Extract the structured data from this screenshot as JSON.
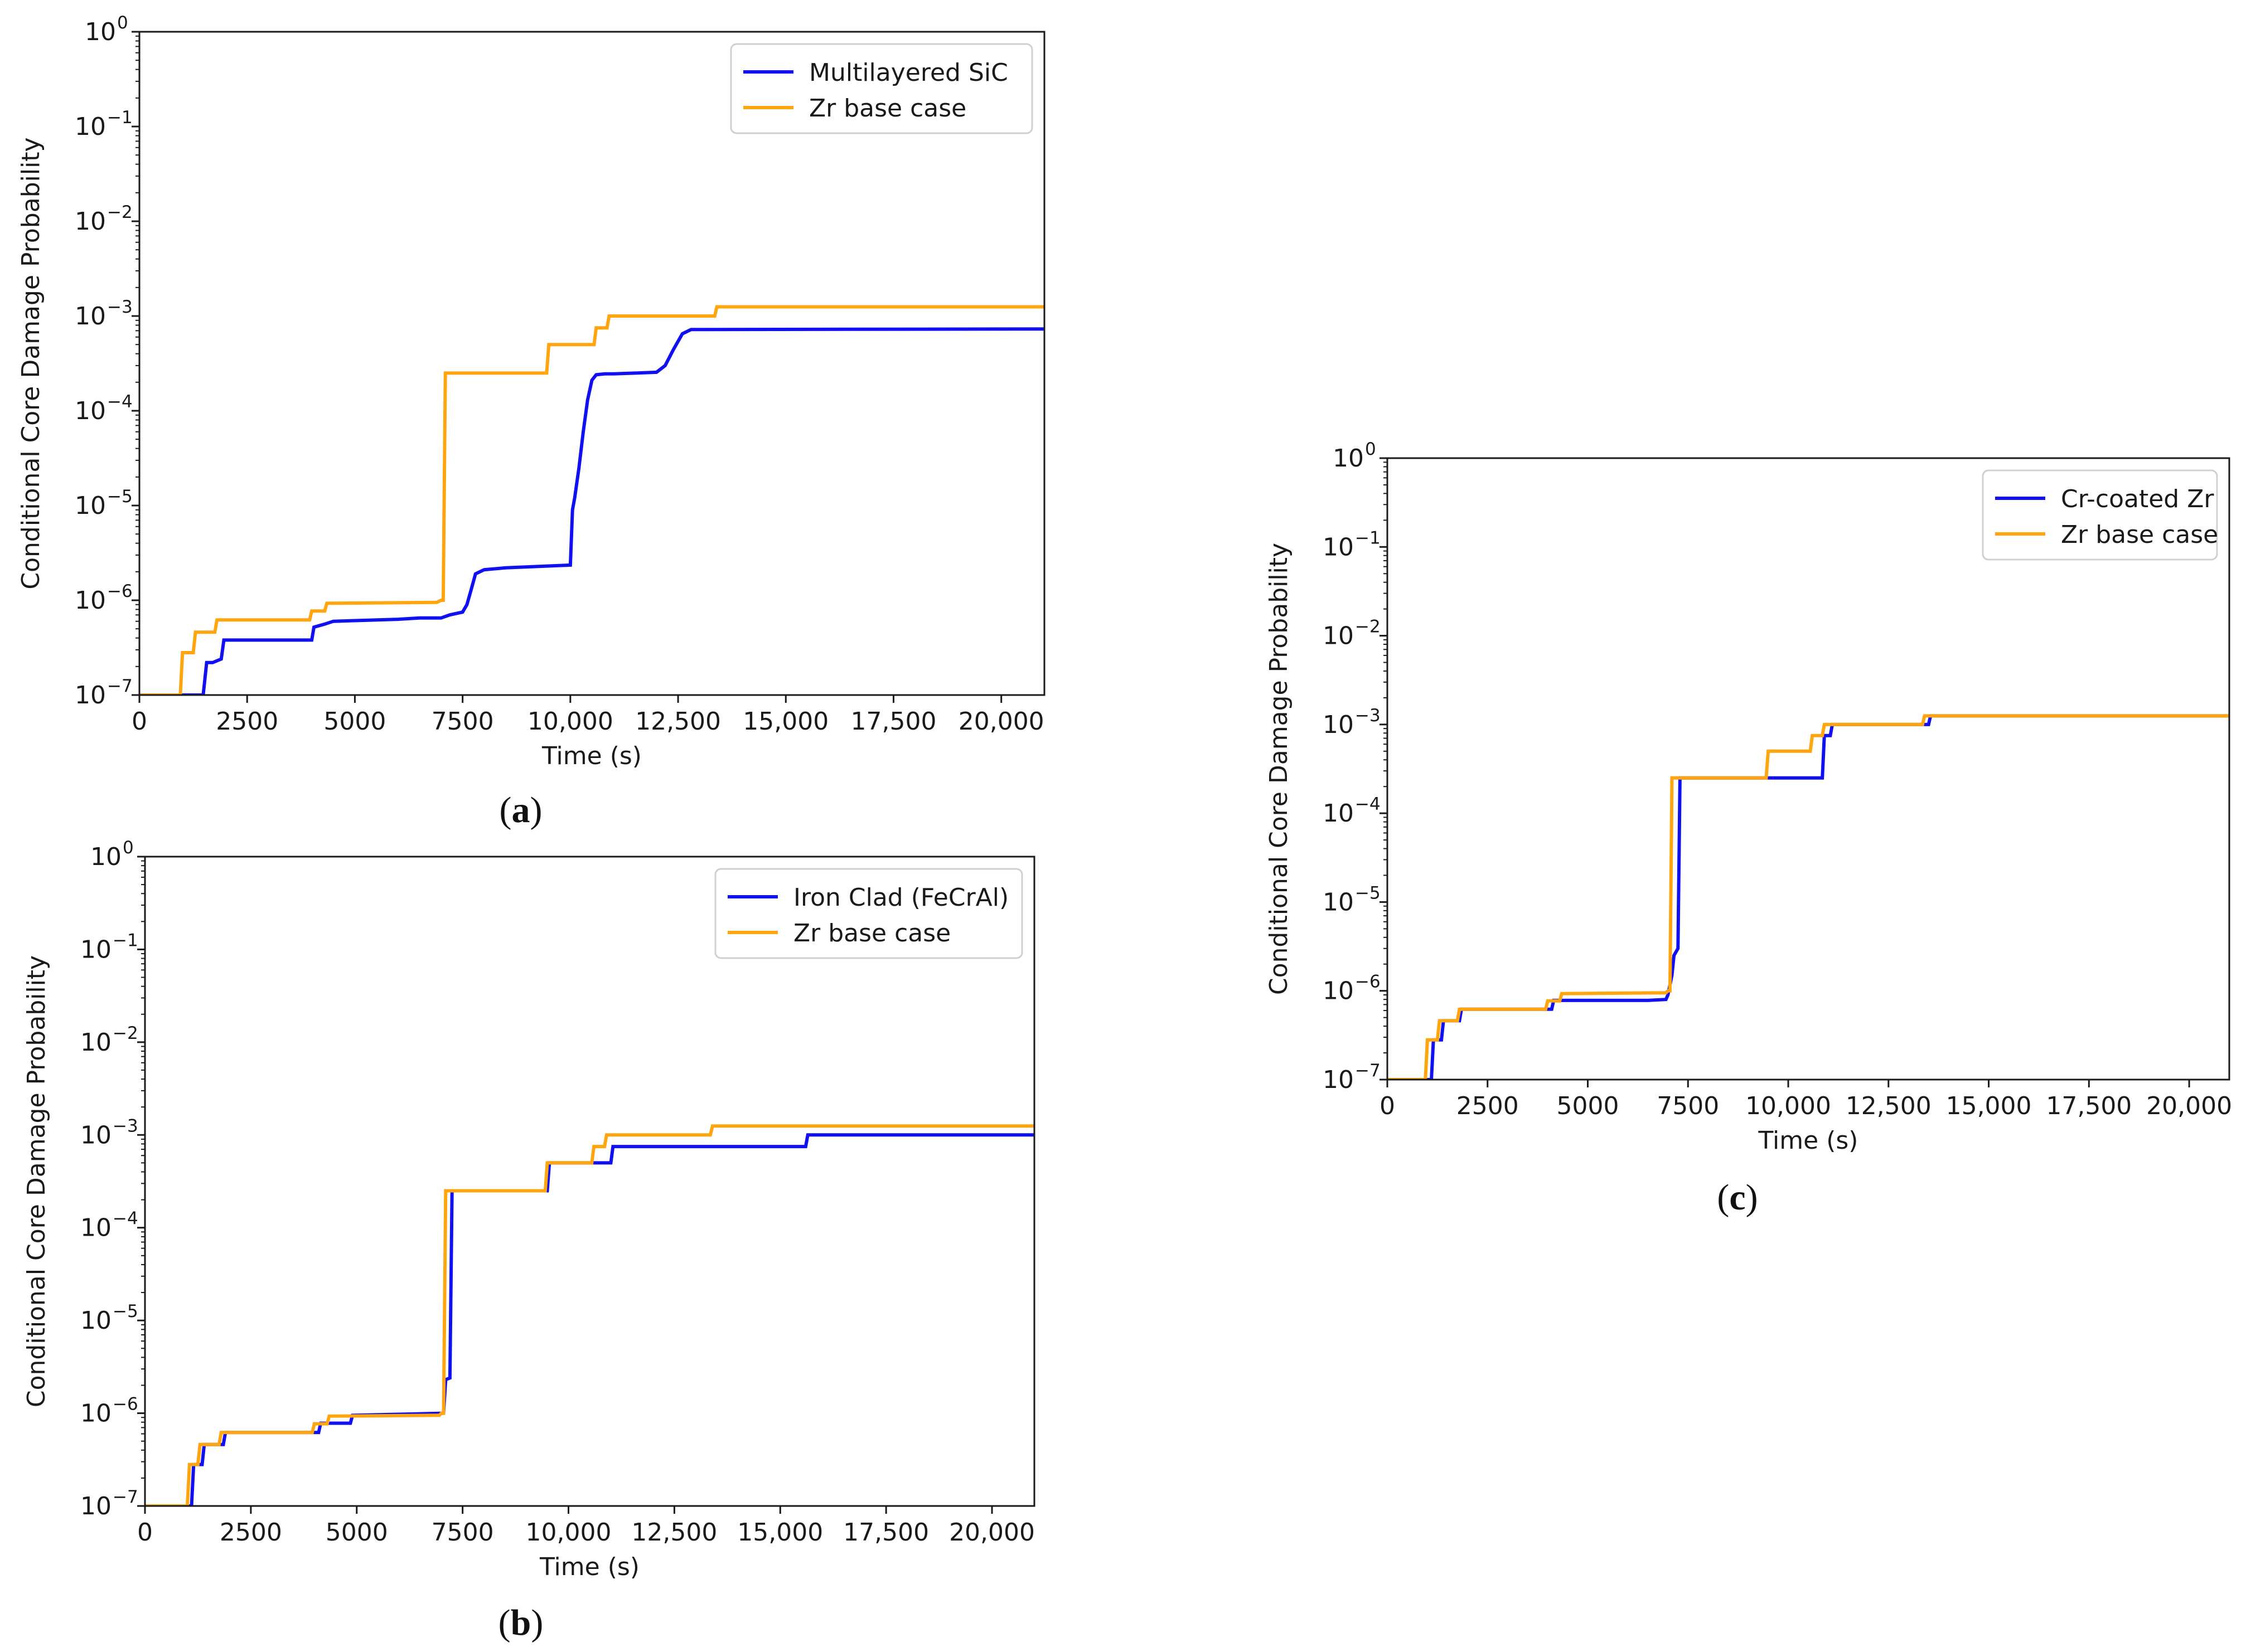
{
  "figure": {
    "captions": [
      {
        "before": "(",
        "letter": "a",
        "after": ")"
      },
      {
        "before": "(",
        "letter": "b",
        "after": ")"
      },
      {
        "before": "(",
        "letter": "c",
        "after": ")"
      }
    ]
  },
  "colors": {
    "blue": "#1010f0",
    "orange": "#ffa510",
    "axis": "#1a1a1a"
  },
  "chart_data": [
    {
      "id": "a",
      "type": "line",
      "xlabel": "Time (s)",
      "ylabel": "Conditional Core Damage Probability",
      "xlim": [
        0,
        21000
      ],
      "ylim_log10": [
        -7,
        0
      ],
      "y_scale": "log",
      "x_ticks": [
        0,
        2500,
        5000,
        7500,
        10000,
        12500,
        15000,
        17500,
        20000
      ],
      "x_tick_labels": [
        "0",
        "2500",
        "5000",
        "7500",
        "10,000",
        "12,500",
        "15,000",
        "17,500",
        "20,000"
      ],
      "y_tick_exponents": [
        "0",
        "−1",
        "−2",
        "−3",
        "−4",
        "−5",
        "−6",
        "−7"
      ],
      "y_tick_base": "10",
      "legend_position": "upper right",
      "series": [
        {
          "name": "Multilayered SiC",
          "color": "#1010f0",
          "x": [
            0,
            1480,
            1560,
            1700,
            1900,
            1960,
            2100,
            4000,
            4050,
            4300,
            4500,
            5000,
            6000,
            6500,
            7000,
            7200,
            7500,
            7600,
            7700,
            7800,
            8000,
            8500,
            9000,
            10000,
            10050,
            10100,
            10200,
            10300,
            10400,
            10500,
            10600,
            10800,
            11000,
            11500,
            12000,
            12200,
            12400,
            12600,
            12800,
            21000
          ],
          "y": [
            1e-07,
            1e-07,
            2.2e-07,
            2.2e-07,
            2.4e-07,
            3.8e-07,
            3.8e-07,
            3.8e-07,
            5.2e-07,
            5.6e-07,
            6e-07,
            6.1e-07,
            6.3e-07,
            6.5e-07,
            6.5e-07,
            7e-07,
            7.5e-07,
            9e-07,
            1.3e-06,
            1.9e-06,
            2.1e-06,
            2.2e-06,
            2.25e-06,
            2.35e-06,
            9e-06,
            1.2e-05,
            2.5e-05,
            6e-05,
            0.00013,
            0.00021,
            0.00024,
            0.000245,
            0.000245,
            0.00025,
            0.000255,
            0.0003,
            0.00045,
            0.00065,
            0.00072,
            0.00073
          ]
        },
        {
          "name": "Zr base case",
          "color": "#ffa510",
          "x": [
            0,
            950,
            1000,
            1250,
            1300,
            1750,
            1800,
            3950,
            4000,
            4300,
            4350,
            6900,
            7000,
            7050,
            7100,
            9450,
            9500,
            10550,
            10600,
            10850,
            10900,
            13350,
            13400,
            21000
          ],
          "y": [
            1e-07,
            1e-07,
            2.8e-07,
            2.8e-07,
            4.6e-07,
            4.6e-07,
            6.2e-07,
            6.2e-07,
            7.7e-07,
            7.7e-07,
            9.3e-07,
            9.5e-07,
            1e-06,
            1e-06,
            0.00025,
            0.00025,
            0.0005,
            0.0005,
            0.00075,
            0.00075,
            0.001,
            0.001,
            0.00125,
            0.00125
          ]
        }
      ]
    },
    {
      "id": "b",
      "type": "line",
      "xlabel": "Time (s)",
      "ylabel": "Conditional Core Damage Probability",
      "xlim": [
        0,
        21000
      ],
      "ylim_log10": [
        -7,
        0
      ],
      "y_scale": "log",
      "x_ticks": [
        0,
        2500,
        5000,
        7500,
        10000,
        12500,
        15000,
        17500,
        20000
      ],
      "x_tick_labels": [
        "0",
        "2500",
        "5000",
        "7500",
        "10,000",
        "12,500",
        "15,000",
        "17,500",
        "20,000"
      ],
      "y_tick_exponents": [
        "0",
        "−1",
        "−2",
        "−3",
        "−4",
        "−5",
        "−6",
        "−7"
      ],
      "y_tick_base": "10",
      "legend_position": "upper right",
      "series": [
        {
          "name": "Iron Clad (FeCrAl)",
          "color": "#1010f0",
          "x": [
            0,
            1100,
            1150,
            1350,
            1400,
            1850,
            1900,
            4100,
            4150,
            4850,
            4900,
            7050,
            7100,
            7200,
            7250,
            7300,
            9500,
            9550,
            11000,
            11050,
            15600,
            15650,
            21000
          ],
          "y": [
            1e-07,
            1e-07,
            2.8e-07,
            2.8e-07,
            4.6e-07,
            4.6e-07,
            6.2e-07,
            6.2e-07,
            7.8e-07,
            7.8e-07,
            9.5e-07,
            1e-06,
            2.3e-06,
            2.4e-06,
            0.00025,
            0.00025,
            0.00025,
            0.0005,
            0.0005,
            0.00075,
            0.00075,
            0.001,
            0.001
          ]
        },
        {
          "name": "Zr base case",
          "color": "#ffa510",
          "x": [
            0,
            1000,
            1050,
            1250,
            1300,
            1750,
            1800,
            3950,
            4000,
            4300,
            4350,
            6950,
            7000,
            7050,
            7100,
            9450,
            9500,
            10550,
            10600,
            10850,
            10900,
            13350,
            13400,
            21000
          ],
          "y": [
            1e-07,
            1e-07,
            2.8e-07,
            2.8e-07,
            4.6e-07,
            4.6e-07,
            6.2e-07,
            6.2e-07,
            7.7e-07,
            7.7e-07,
            9.3e-07,
            9.5e-07,
            1e-06,
            1e-06,
            0.00025,
            0.00025,
            0.0005,
            0.0005,
            0.00075,
            0.00075,
            0.001,
            0.001,
            0.00125,
            0.00125
          ]
        }
      ]
    },
    {
      "id": "c",
      "type": "line",
      "xlabel": "Time (s)",
      "ylabel": "Conditional Core Damage Probability",
      "xlim": [
        0,
        21000
      ],
      "ylim_log10": [
        -7,
        0
      ],
      "y_scale": "log",
      "x_ticks": [
        0,
        2500,
        5000,
        7500,
        10000,
        12500,
        15000,
        17500,
        20000
      ],
      "x_tick_labels": [
        "0",
        "2500",
        "5000",
        "7500",
        "10,000",
        "12,500",
        "15,000",
        "17,500",
        "20,000"
      ],
      "y_tick_exponents": [
        "0",
        "−1",
        "−2",
        "−3",
        "−4",
        "−5",
        "−6",
        "−7"
      ],
      "y_tick_base": "10",
      "legend_position": "upper right",
      "series": [
        {
          "name": "Cr-coated Zr",
          "color": "#1010f0",
          "x": [
            0,
            1100,
            1150,
            1350,
            1400,
            1800,
            1850,
            4100,
            4150,
            6500,
            6950,
            7000,
            7100,
            7150,
            7250,
            7300,
            10850,
            10900,
            11050,
            11100,
            13500,
            13550,
            21000
          ],
          "y": [
            1e-07,
            1e-07,
            2.8e-07,
            2.8e-07,
            4.6e-07,
            4.6e-07,
            6.2e-07,
            6.2e-07,
            7.8e-07,
            7.8e-07,
            8e-07,
            9e-07,
            1.5e-06,
            2.5e-06,
            3e-06,
            0.00025,
            0.00025,
            0.00075,
            0.00075,
            0.001,
            0.001,
            0.00125,
            0.00125
          ]
        },
        {
          "name": "Zr base case",
          "color": "#ffa510",
          "x": [
            0,
            950,
            1000,
            1250,
            1300,
            1750,
            1800,
            3950,
            4000,
            4300,
            4350,
            6950,
            7000,
            7050,
            7100,
            9450,
            9500,
            10550,
            10600,
            10850,
            10900,
            13350,
            13400,
            21000
          ],
          "y": [
            1e-07,
            1e-07,
            2.8e-07,
            2.8e-07,
            4.6e-07,
            4.6e-07,
            6.2e-07,
            6.2e-07,
            7.7e-07,
            7.7e-07,
            9.3e-07,
            9.5e-07,
            1e-06,
            1e-06,
            0.00025,
            0.00025,
            0.0005,
            0.0005,
            0.00075,
            0.00075,
            0.001,
            0.001,
            0.00125,
            0.00125
          ]
        }
      ]
    }
  ]
}
